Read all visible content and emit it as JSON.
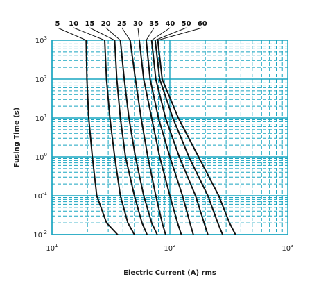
{
  "chart_data": {
    "type": "line",
    "title": "",
    "xlabel": "Electric Current (A) rms",
    "ylabel": "Fusing Time (s)",
    "x_scale": "log",
    "y_scale": "log",
    "xlim": [
      10,
      1000
    ],
    "ylim": [
      0.01,
      1000
    ],
    "grid": true,
    "grid_color": "#19a5c0",
    "line_color": "#111111",
    "x_ticks": [
      {
        "base": "10",
        "exp": "1",
        "value": 10
      },
      {
        "base": "10",
        "exp": "2",
        "value": 100
      },
      {
        "base": "10",
        "exp": "3",
        "value": 1000
      }
    ],
    "y_ticks": [
      {
        "base": "10",
        "exp": "3",
        "value": 1000
      },
      {
        "base": "10",
        "exp": "2",
        "value": 100
      },
      {
        "base": "10",
        "exp": "1",
        "value": 10
      },
      {
        "base": "10",
        "exp": "0",
        "value": 1
      },
      {
        "base": "10",
        "exp": "-1",
        "value": 0.1
      },
      {
        "base": "10",
        "exp": "-2",
        "value": 0.01
      }
    ],
    "series": [
      {
        "name": "5",
        "points": [
          [
            19.5,
            1000
          ],
          [
            19.8,
            100
          ],
          [
            20.5,
            10
          ],
          [
            22,
            1
          ],
          [
            24,
            0.1
          ],
          [
            29,
            0.02
          ],
          [
            36,
            0.01
          ]
        ]
      },
      {
        "name": "10",
        "points": [
          [
            28,
            1000
          ],
          [
            29,
            100
          ],
          [
            31,
            10
          ],
          [
            34,
            1
          ],
          [
            38,
            0.1
          ],
          [
            44,
            0.02
          ],
          [
            50,
            0.01
          ]
        ]
      },
      {
        "name": "15",
        "points": [
          [
            34,
            1000
          ],
          [
            35.5,
            100
          ],
          [
            38,
            10
          ],
          [
            42,
            1
          ],
          [
            50,
            0.1
          ],
          [
            58,
            0.02
          ],
          [
            64,
            0.01
          ]
        ]
      },
      {
        "name": "20",
        "points": [
          [
            38,
            1000
          ],
          [
            41,
            100
          ],
          [
            45,
            10
          ],
          [
            51,
            1
          ],
          [
            60,
            0.1
          ],
          [
            70,
            0.02
          ],
          [
            78,
            0.01
          ]
        ]
      },
      {
        "name": "25",
        "points": [
          [
            46,
            1000
          ],
          [
            51,
            100
          ],
          [
            57,
            10
          ],
          [
            65,
            1
          ],
          [
            76,
            0.1
          ],
          [
            86,
            0.02
          ],
          [
            92,
            0.01
          ]
        ]
      },
      {
        "name": "30",
        "points": [
          [
            55,
            1000
          ],
          [
            60,
            100
          ],
          [
            70,
            10
          ],
          [
            82,
            1
          ],
          [
            100,
            0.1
          ],
          [
            116,
            0.02
          ],
          [
            125,
            0.01
          ]
        ]
      },
      {
        "name": "35",
        "points": [
          [
            63,
            1000
          ],
          [
            68,
            100
          ],
          [
            80,
            10
          ],
          [
            100,
            1
          ],
          [
            128,
            0.1
          ],
          [
            148,
            0.02
          ],
          [
            158,
            0.01
          ]
        ]
      },
      {
        "name": "40",
        "points": [
          [
            70,
            1000
          ],
          [
            76,
            100
          ],
          [
            92,
            10
          ],
          [
            120,
            1
          ],
          [
            165,
            0.1
          ],
          [
            195,
            0.02
          ],
          [
            210,
            0.01
          ]
        ]
      },
      {
        "name": "50",
        "points": [
          [
            75,
            1000
          ],
          [
            82,
            100
          ],
          [
            106,
            10
          ],
          [
            145,
            1
          ],
          [
            210,
            0.1
          ],
          [
            255,
            0.02
          ],
          [
            280,
            0.01
          ]
        ]
      },
      {
        "name": "60",
        "points": [
          [
            79,
            1000
          ],
          [
            86,
            100
          ],
          [
            118,
            10
          ],
          [
            175,
            1
          ],
          [
            260,
            0.1
          ],
          [
            320,
            0.02
          ],
          [
            360,
            0.01
          ]
        ]
      }
    ]
  }
}
